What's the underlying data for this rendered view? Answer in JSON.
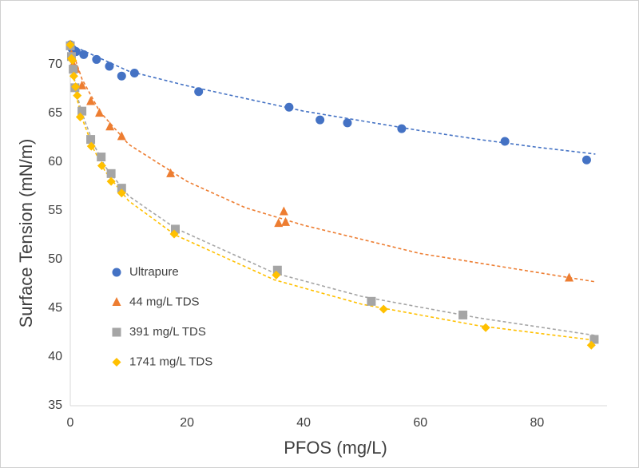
{
  "chart_data": {
    "type": "scatter",
    "x_label": "PFOS (mg/L)",
    "y_label": "Surface Tension (mN/m)",
    "xlim": [
      0,
      92
    ],
    "ylim": [
      35,
      72.5
    ],
    "xticks": [
      0,
      20,
      40,
      60,
      80
    ],
    "yticks": [
      35,
      40,
      45,
      50,
      55,
      60,
      65,
      70
    ],
    "grid": false,
    "legend": "left",
    "series": [
      {
        "name": "Ultrapure",
        "color": "#4472c4",
        "marker": "circle",
        "x": [
          0,
          0.3,
          1,
          2.3,
          4.5,
          6.7,
          8.8,
          11,
          22,
          37.5,
          42.8,
          47.5,
          56.8,
          74.5,
          88.5
        ],
        "values": [
          72,
          71.6,
          71.3,
          71.0,
          70.5,
          69.8,
          68.8,
          69.1,
          67.2,
          65.6,
          64.3,
          64.0,
          63.4,
          62.1,
          60.2
        ],
        "fit": {
          "x": [
            0,
            10,
            20,
            30,
            40,
            50,
            60,
            70,
            80,
            90
          ],
          "y": [
            72,
            69.3,
            67.8,
            66.5,
            65.2,
            64.2,
            63.2,
            62.3,
            61.5,
            60.8
          ]
        }
      },
      {
        "name": "44 mg/L TDS",
        "color": "#ed7d31",
        "marker": "triangle",
        "x": [
          0,
          0.2,
          0.5,
          1,
          2,
          3.5,
          5,
          6.8,
          8.8,
          17.2,
          35.7,
          36.6,
          36.9,
          85.5
        ],
        "values": [
          72,
          71,
          70,
          69.5,
          67.8,
          66.2,
          65,
          63.6,
          62.6,
          58.8,
          53.7,
          54.9,
          53.8,
          48.1
        ],
        "fit": {
          "x": [
            0,
            2,
            5,
            10,
            20,
            30,
            40,
            60,
            90
          ],
          "y": [
            72,
            68.5,
            65.2,
            61.8,
            58,
            55.3,
            53.5,
            50.6,
            47.7
          ]
        }
      },
      {
        "name": "391 mg/L TDS",
        "color": "#a5a5a5",
        "marker": "square",
        "x": [
          0,
          0.2,
          0.5,
          0.8,
          2,
          3.5,
          5.3,
          7,
          8.8,
          18,
          35.5,
          51.6,
          67.3,
          89.8
        ],
        "values": [
          71.9,
          70.8,
          69.5,
          67.6,
          65.2,
          62.3,
          60.5,
          58.8,
          57.3,
          53.1,
          48.9,
          45.7,
          44.3,
          41.8
        ],
        "fit": {
          "x": [
            0,
            1,
            2,
            4,
            6,
            10,
            18,
            35,
            50,
            70,
            90
          ],
          "y": [
            72,
            67.2,
            65,
            61.8,
            59.5,
            56.5,
            53.2,
            48.6,
            46.2,
            44,
            42.2
          ]
        }
      },
      {
        "name": "1741 mg/L TDS",
        "color": "#ffc000",
        "marker": "diamond",
        "x": [
          0,
          0.2,
          0.4,
          0.6,
          0.9,
          1.2,
          1.7,
          3.6,
          5.4,
          7,
          8.8,
          17.8,
          35.3,
          53.7,
          71.2,
          89.3
        ],
        "values": [
          72,
          70.6,
          70.4,
          68.8,
          67.7,
          66.8,
          64.6,
          61.6,
          59.6,
          58,
          56.8,
          52.6,
          48.4,
          44.9,
          43,
          41.2
        ],
        "fit": {
          "x": [
            0,
            1,
            2,
            4,
            6,
            10,
            18,
            35,
            50,
            70,
            90
          ],
          "y": [
            72,
            66.8,
            64.5,
            61.3,
            59,
            56,
            52.5,
            47.9,
            45.4,
            43.2,
            41.7
          ]
        }
      }
    ]
  }
}
